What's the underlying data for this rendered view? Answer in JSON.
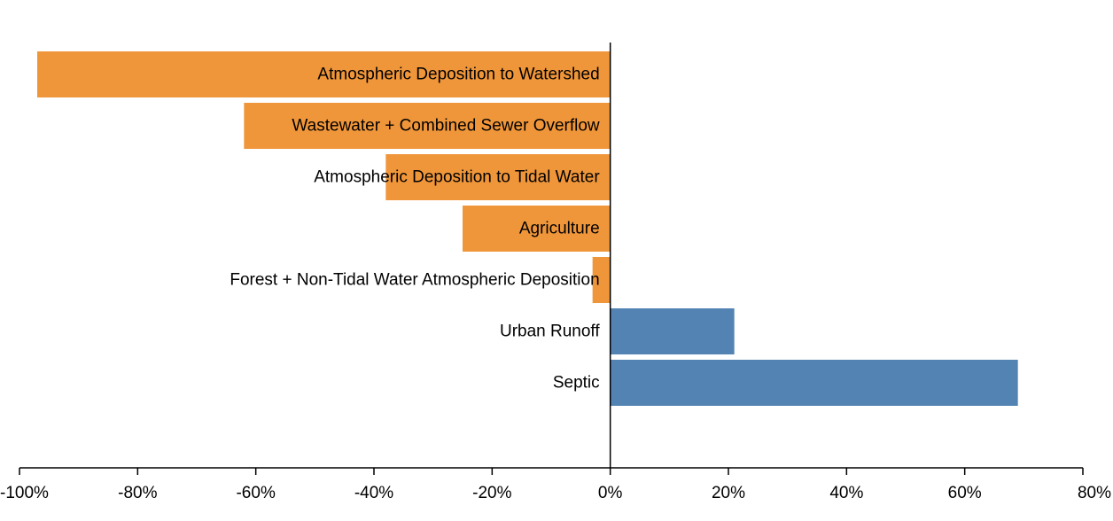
{
  "chart_data": {
    "type": "bar",
    "orientation": "horizontal",
    "categories": [
      "Atmospheric Deposition to Watershed",
      "Wastewater + Combined Sewer Overflow",
      "Atmospheric Deposition to Tidal Water",
      "Agriculture",
      "Forest + Non-Tidal Water Atmospheric Deposition",
      "Urban Runoff",
      "Septic"
    ],
    "values": [
      -97,
      -62,
      -38,
      -25,
      -3,
      21,
      69
    ],
    "xlim": [
      -100,
      80
    ],
    "xticks": [
      -100,
      -80,
      -60,
      -40,
      -20,
      0,
      20,
      40,
      60,
      80
    ],
    "xtick_labels": [
      "-100%",
      "-80%",
      "-60%",
      "-40%",
      "-20%",
      "0%",
      "20%",
      "40%",
      "60%",
      "80%"
    ],
    "colors": {
      "negative": "#f0963a",
      "positive": "#5383b3"
    },
    "grid": false,
    "legend": "none"
  }
}
